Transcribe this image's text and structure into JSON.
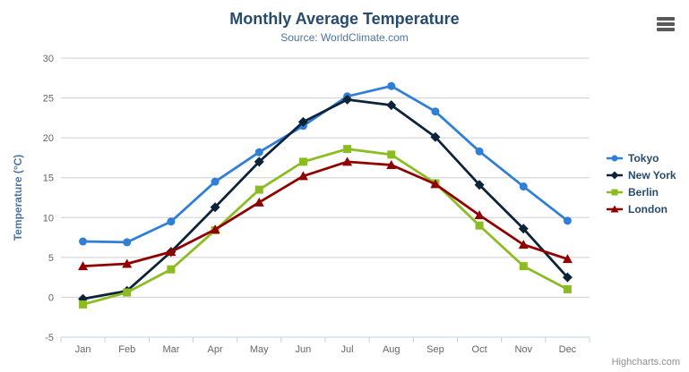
{
  "header": {
    "title": "Monthly Average Temperature",
    "subtitle": "Source: WorldClimate.com"
  },
  "credits": "Highcharts.com",
  "icons": {
    "context_menu": "hamburger-icon"
  },
  "colors": {
    "title": "#274b6d",
    "subtitle": "#4d759e",
    "axis_title": "#4d759e",
    "axis_labels": "#666666",
    "gridline": "#cfcfcf",
    "axis_line": "#c0d0e0",
    "legend_text": "#274b6d",
    "credits_text": "#909090"
  },
  "chart_data": {
    "type": "line",
    "title": "Monthly Average Temperature",
    "subtitle": "Source: WorldClimate.com",
    "categories": [
      "Jan",
      "Feb",
      "Mar",
      "Apr",
      "May",
      "Jun",
      "Jul",
      "Aug",
      "Sep",
      "Oct",
      "Nov",
      "Dec"
    ],
    "xlabel": "",
    "ylabel": "Temperature (°C)",
    "ylim": [
      -5,
      30
    ],
    "ytick_step": 5,
    "grid": true,
    "legend_position": "right",
    "series": [
      {
        "name": "Tokyo",
        "color": "#2f7ed8",
        "marker": "circle",
        "values": [
          7.0,
          6.9,
          9.5,
          14.5,
          18.2,
          21.5,
          25.2,
          26.5,
          23.3,
          18.3,
          13.9,
          9.6
        ]
      },
      {
        "name": "New York",
        "color": "#0d233a",
        "marker": "diamond",
        "values": [
          -0.2,
          0.8,
          5.7,
          11.3,
          17.0,
          22.0,
          24.8,
          24.1,
          20.1,
          14.1,
          8.6,
          2.5
        ]
      },
      {
        "name": "Berlin",
        "color": "#8bbc21",
        "marker": "square",
        "values": [
          -0.9,
          0.6,
          3.5,
          8.4,
          13.5,
          17.0,
          18.6,
          17.9,
          14.3,
          9.0,
          3.9,
          1.0
        ]
      },
      {
        "name": "London",
        "color": "#910000",
        "marker": "triangle",
        "values": [
          3.9,
          4.2,
          5.7,
          8.5,
          11.9,
          15.2,
          17.0,
          16.6,
          14.2,
          10.3,
          6.6,
          4.8
        ]
      }
    ]
  }
}
